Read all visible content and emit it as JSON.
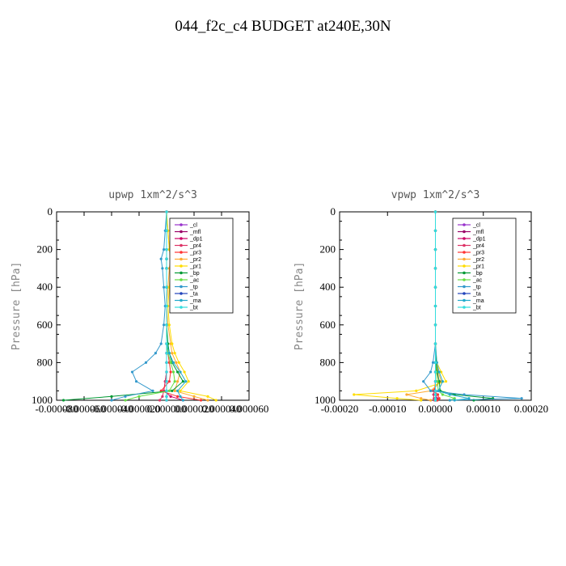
{
  "figure": {
    "title": "044_f2c_c4  BUDGET at240E,30N"
  },
  "chart_data": [
    {
      "type": "line",
      "title": "upwp   1xm^2/s^3",
      "ylabel": "Pressure [hPa]",
      "xlim": [
        -8e-05,
        6e-05
      ],
      "ylim": [
        1000,
        0
      ],
      "x_ticks": [
        -8e-05,
        -6e-05,
        -4e-05,
        -2e-05,
        0.0,
        2e-05,
        4e-05,
        6e-05
      ],
      "x_tick_labels": [
        "-0.000080",
        "-0.000060",
        "-0.000040",
        "-0.000020",
        "0.000000",
        "0.000020",
        "0.000040",
        "0.000060"
      ],
      "y_ticks": [
        0,
        200,
        400,
        600,
        800,
        1000
      ],
      "y_tick_labels": [
        "0",
        "200",
        "400",
        "600",
        "800",
        "1000"
      ],
      "legend_position": "upper-right",
      "pressure": [
        0,
        100,
        200,
        250,
        300,
        400,
        500,
        600,
        700,
        750,
        800,
        850,
        900,
        950,
        980,
        1000
      ],
      "series": [
        {
          "name": "_cl",
          "color": "#9933cc",
          "values": [
            0,
            0,
            0,
            0,
            0,
            0,
            0,
            0,
            0,
            0,
            0,
            0,
            0,
            0,
            0,
            0
          ]
        },
        {
          "name": "_mfl",
          "color": "#990066",
          "values": [
            0,
            0,
            0,
            0,
            0,
            0,
            0,
            0,
            0,
            0,
            0,
            0,
            0,
            0,
            0,
            0
          ]
        },
        {
          "name": "_dp1",
          "color": "#cc0066",
          "values": [
            0,
            0,
            0,
            0,
            0,
            0,
            0,
            0,
            0,
            0,
            0,
            0,
            -1e-06,
            -2e-06,
            3e-06,
            1.2e-05
          ]
        },
        {
          "name": "_pr4",
          "color": "#dd3366",
          "values": [
            0,
            0,
            0,
            0,
            0,
            0,
            0,
            0,
            0,
            0,
            0,
            0,
            -1e-06,
            -2e-06,
            -3e-06,
            -5e-06
          ]
        },
        {
          "name": "_pr3",
          "color": "#ff3333",
          "values": [
            0,
            0,
            0,
            0,
            0,
            0,
            0,
            0,
            0,
            1e-06,
            2e-06,
            3e-06,
            2e-06,
            -4e-06,
            8e-06,
            2.5e-05
          ]
        },
        {
          "name": "_pr2",
          "color": "#ffaa33",
          "values": [
            0,
            1e-06,
            2e-06,
            3e-06,
            2e-06,
            1e-06,
            0,
            1e-06,
            3e-06,
            4e-06,
            7e-06,
            1e-05,
            8e-06,
            6e-06,
            2e-05,
            3e-05
          ]
        },
        {
          "name": "_pr1",
          "color": "#ffdd00",
          "values": [
            0,
            1e-06,
            2e-06,
            4e-06,
            3e-06,
            2e-06,
            1e-06,
            2e-06,
            4e-06,
            6e-06,
            9e-06,
            1.3e-05,
            1.6e-05,
            1e-05,
            3e-05,
            3.6e-05
          ]
        },
        {
          "name": "_bp",
          "color": "#009933",
          "values": [
            0,
            0,
            0,
            0,
            0,
            0,
            0,
            0,
            1e-06,
            2e-06,
            4e-06,
            8e-06,
            1.2e-05,
            4e-06,
            -4e-05,
            -7.5e-05
          ]
        },
        {
          "name": "_ac",
          "color": "#66dd44",
          "values": [
            0,
            0,
            0,
            0,
            0,
            0,
            0,
            0,
            0,
            1e-06,
            3e-06,
            5e-06,
            6e-06,
            2e-06,
            -2e-05,
            -3e-05
          ]
        },
        {
          "name": "_tp",
          "color": "#3399cc",
          "values": [
            0,
            -1e-06,
            -2e-06,
            -4e-06,
            -3e-06,
            -2e-06,
            -1e-06,
            -2e-06,
            -4e-06,
            -8e-06,
            -1.5e-05,
            -2.5e-05,
            -2.2e-05,
            -1e-05,
            -3e-05,
            -4e-05
          ]
        },
        {
          "name": "_ta",
          "color": "#2244bb",
          "values": [
            0,
            0,
            0,
            0,
            0,
            0,
            0,
            0,
            0,
            0,
            0,
            0,
            0,
            0,
            0,
            0
          ]
        },
        {
          "name": "_ma",
          "color": "#22aacc",
          "values": [
            0,
            0,
            0,
            0,
            0,
            0,
            0,
            0,
            0,
            2e-06,
            5e-06,
            1e-05,
            1.4e-05,
            8e-06,
            1e-05,
            1.2e-05
          ]
        },
        {
          "name": "_bt",
          "color": "#33dddd",
          "values": [
            0,
            0,
            0,
            0,
            0,
            0,
            0,
            0,
            0,
            0,
            0,
            0,
            0,
            0,
            0,
            0
          ]
        }
      ]
    },
    {
      "type": "line",
      "title": "vpwp   1xm^2/s^3",
      "ylabel": "Pressure [hPa]",
      "xlim": [
        -0.0002,
        0.0002
      ],
      "ylim": [
        1000,
        0
      ],
      "x_ticks": [
        -0.0002,
        -0.0001,
        0.0,
        0.0001,
        0.0002
      ],
      "x_tick_labels": [
        "-0.00020",
        "-0.00010",
        "0.00000",
        "0.00010",
        "0.00020"
      ],
      "y_ticks": [
        0,
        200,
        400,
        600,
        800,
        1000
      ],
      "y_tick_labels": [
        "0",
        "200",
        "400",
        "600",
        "800",
        "1000"
      ],
      "legend_position": "upper-right",
      "pressure": [
        0,
        100,
        200,
        300,
        400,
        500,
        600,
        700,
        800,
        850,
        900,
        950,
        970,
        990,
        1000
      ],
      "series": [
        {
          "name": "_cl",
          "color": "#9933cc",
          "values": [
            0,
            0,
            0,
            0,
            0,
            0,
            0,
            0,
            0,
            0,
            0,
            0,
            0,
            0,
            0
          ]
        },
        {
          "name": "_mfl",
          "color": "#990066",
          "values": [
            0,
            0,
            0,
            0,
            0,
            0,
            0,
            0,
            0,
            0,
            0,
            0,
            0,
            0,
            0
          ]
        },
        {
          "name": "_dp1",
          "color": "#cc0066",
          "values": [
            0,
            0,
            0,
            0,
            0,
            0,
            0,
            0,
            0,
            0,
            0,
            0,
            2e-06,
            3e-06,
            2e-06
          ]
        },
        {
          "name": "_pr4",
          "color": "#dd3366",
          "values": [
            0,
            0,
            0,
            0,
            0,
            0,
            0,
            0,
            0,
            0,
            0,
            -2e-06,
            -4e-06,
            -3e-06,
            -2e-06
          ]
        },
        {
          "name": "_pr3",
          "color": "#ff3333",
          "values": [
            0,
            0,
            0,
            0,
            0,
            0,
            0,
            0,
            0,
            3e-06,
            8e-06,
            -5e-06,
            5e-06,
            8e-06,
            4e-06
          ]
        },
        {
          "name": "_pr2",
          "color": "#ffaa33",
          "values": [
            0,
            0,
            0,
            0,
            0,
            0,
            0,
            0,
            2e-06,
            6e-06,
            1.2e-05,
            -1e-05,
            -6e-05,
            -3e-05,
            -1e-05
          ]
        },
        {
          "name": "_pr1",
          "color": "#ffdd00",
          "values": [
            0,
            0,
            0,
            0,
            0,
            0,
            0,
            0,
            3e-06,
            1.2e-05,
            2.2e-05,
            -4e-05,
            -0.00017,
            -8e-05,
            -3e-05
          ]
        },
        {
          "name": "_bp",
          "color": "#009933",
          "values": [
            0,
            0,
            0,
            0,
            0,
            0,
            0,
            0,
            1e-06,
            4e-06,
            8e-06,
            1e-05,
            4e-05,
            0.00012,
            8e-05
          ]
        },
        {
          "name": "_ac",
          "color": "#66dd44",
          "values": [
            0,
            0,
            0,
            0,
            0,
            0,
            0,
            0,
            0,
            2e-06,
            4e-06,
            6e-06,
            1.5e-05,
            4e-05,
            3e-05
          ]
        },
        {
          "name": "_tp",
          "color": "#3399cc",
          "values": [
            0,
            0,
            0,
            0,
            0,
            0,
            0,
            0,
            -5e-06,
            -1e-05,
            -2.5e-05,
            -1e-05,
            6e-05,
            0.00018,
            3e-05
          ]
        },
        {
          "name": "_ta",
          "color": "#2244bb",
          "values": [
            0,
            0,
            0,
            0,
            0,
            0,
            0,
            0,
            0,
            0,
            0,
            0,
            0,
            0,
            0
          ]
        },
        {
          "name": "_ma",
          "color": "#22aacc",
          "values": [
            0,
            0,
            0,
            0,
            0,
            0,
            0,
            0,
            3e-06,
            8e-06,
            1.5e-05,
            6e-06,
            3e-05,
            7e-05,
            4e-05
          ]
        },
        {
          "name": "_bt",
          "color": "#33dddd",
          "values": [
            0,
            0,
            0,
            0,
            0,
            0,
            0,
            0,
            0,
            0,
            0,
            0,
            0,
            0,
            0
          ]
        }
      ]
    }
  ]
}
